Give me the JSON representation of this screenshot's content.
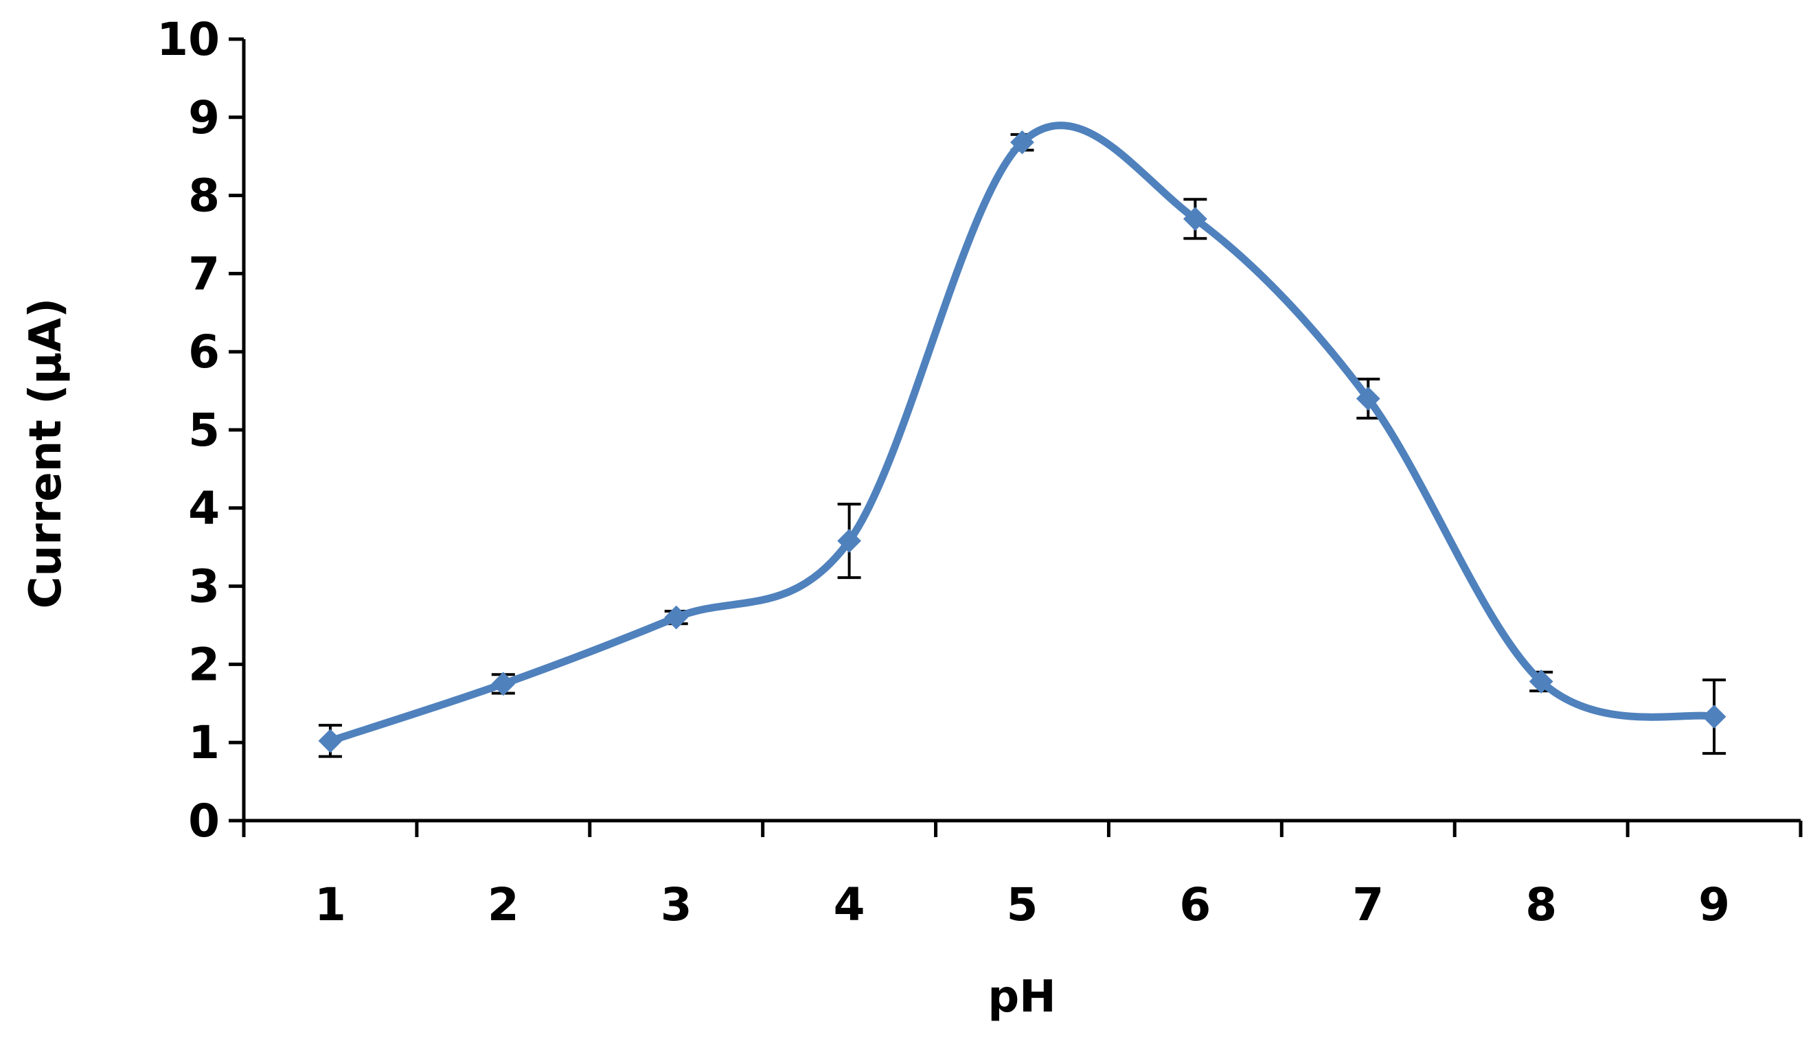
{
  "chart_data": {
    "type": "line",
    "title": "",
    "xlabel": "pH",
    "ylabel": "Current (μA)",
    "categories": [
      "1",
      "2",
      "3",
      "4",
      "5",
      "6",
      "7",
      "8",
      "9"
    ],
    "x": [
      1,
      2,
      3,
      4,
      5,
      6,
      7,
      8,
      9
    ],
    "y_ticks": [
      "0",
      "1",
      "2",
      "3",
      "4",
      "5",
      "6",
      "7",
      "8",
      "9",
      "10"
    ],
    "ylim": [
      0,
      10
    ],
    "grid": false,
    "legend": "none",
    "smooth": true,
    "series": [
      {
        "values": [
          1.02,
          1.75,
          2.6,
          3.58,
          8.68,
          7.7,
          5.4,
          1.78,
          1.33
        ],
        "error": [
          0.2,
          0.12,
          0.08,
          0.47,
          0.1,
          0.25,
          0.25,
          0.12,
          0.47
        ],
        "color": "#4f81bd",
        "marker": "diamond"
      }
    ]
  }
}
